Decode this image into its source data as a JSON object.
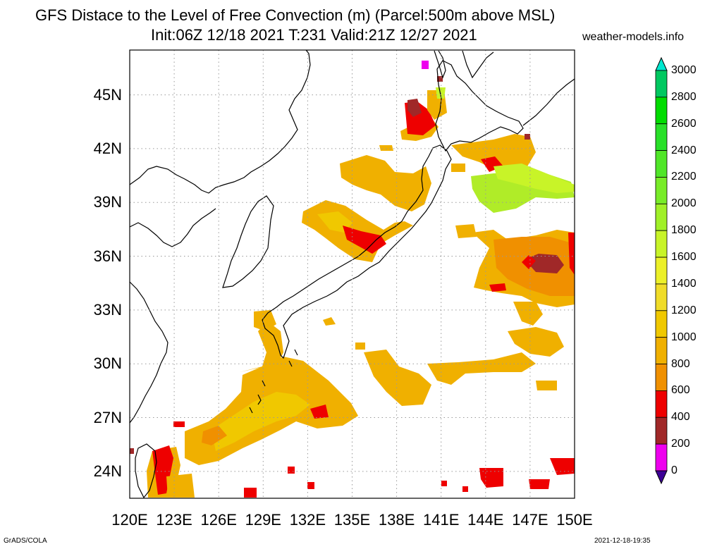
{
  "title": {
    "line1": "GFS Distace to the Level of Free Convection (m) (Parcel:500m above MSL)",
    "line2": "Init:06Z 12/18 2021 T:231 Valid:21Z 12/27 2021"
  },
  "site": "weather-models.info",
  "footer": {
    "left": "GrADS/COLA",
    "right": "2021-12-18-19:35"
  },
  "map": {
    "lon_range": [
      120,
      150
    ],
    "lat_range": [
      22.5,
      47.5
    ],
    "lat_labels": [
      "45N",
      "42N",
      "39N",
      "36N",
      "33N",
      "30N",
      "27N",
      "24N"
    ],
    "lat_values": [
      45,
      42,
      39,
      36,
      33,
      30,
      27,
      24
    ],
    "lon_labels": [
      "120E",
      "123E",
      "126E",
      "129E",
      "132E",
      "135E",
      "138E",
      "141E",
      "144E",
      "147E",
      "150E"
    ],
    "lon_values": [
      120,
      123,
      126,
      129,
      132,
      135,
      138,
      141,
      144,
      147,
      150
    ],
    "grid": "dotted",
    "coastline_color": "#000000"
  },
  "colorbar": {
    "labels": [
      "3000",
      "2800",
      "2600",
      "2400",
      "2200",
      "2000",
      "1800",
      "1600",
      "1400",
      "1200",
      "1000",
      "800",
      "600",
      "400",
      "200",
      "0"
    ],
    "colors": [
      "#00e8c8",
      "#00c860",
      "#00dc00",
      "#28e028",
      "#50e628",
      "#78ec28",
      "#a0f028",
      "#c8f428",
      "#ecf028",
      "#f0dc28",
      "#f0c800",
      "#f0b000",
      "#f09000",
      "#ee0000",
      "#a02828",
      "#ee00ee",
      "#3c0096"
    ],
    "top_color": "#00e8d0",
    "bottom_color": "#3c0096"
  }
}
